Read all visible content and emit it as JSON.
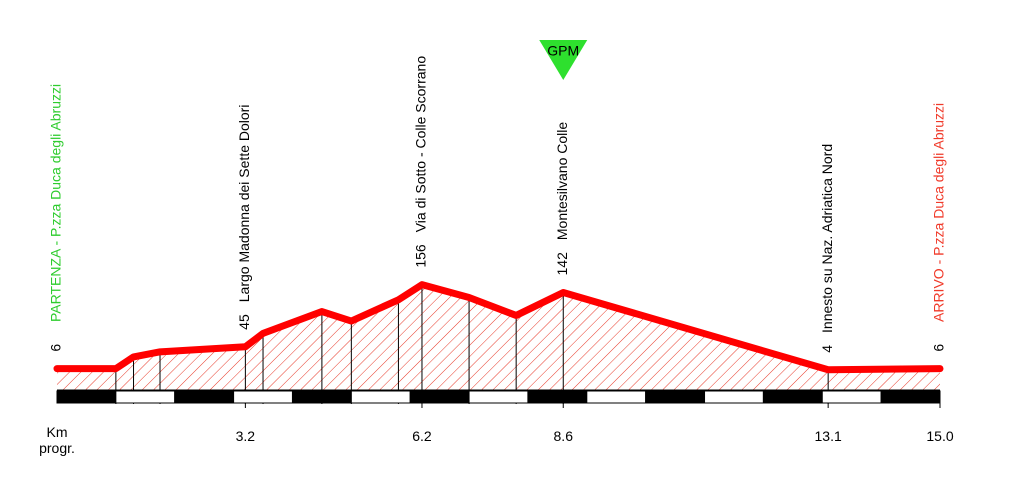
{
  "chart_data": {
    "type": "area",
    "x": [
      0,
      1.0,
      1.3,
      1.75,
      3.2,
      3.5,
      4.5,
      5.0,
      5.8,
      6.2,
      7.0,
      7.8,
      8.6,
      13.1,
      15.0
    ],
    "values": [
      6,
      6,
      27,
      36,
      45,
      69,
      108,
      91,
      129,
      156,
      133,
      101,
      142,
      4,
      6
    ],
    "point_labels": [
      {
        "text": "PARTENZA - P.zza Duca degli Abruzzi"
      },
      null,
      null,
      null,
      {
        "text": "Largo Madonna dei Sette Dolori"
      },
      null,
      null,
      null,
      null,
      {
        "text": "Via di Sotto - Colle Scorrano"
      },
      null,
      null,
      {
        "text": "Montesilvano Colle",
        "badge": "GPM"
      },
      {
        "text": "Innesto su Naz. Adriatica Nord"
      },
      {
        "text": "ARRIVO - P.zza Duca degli Abruzzi"
      }
    ],
    "xlim": [
      0,
      15.0
    ],
    "ylim": [
      0,
      160
    ],
    "xticks": [
      3.2,
      6.2,
      8.6,
      13.1,
      {
        "value": 15,
        "label": "15.0"
      }
    ],
    "x_label": "Km progr.",
    "color": "#ff0000",
    "start_color": "#2ecc2e",
    "finish_color": "#f03a2a",
    "badge_color": "#2ee02e"
  }
}
